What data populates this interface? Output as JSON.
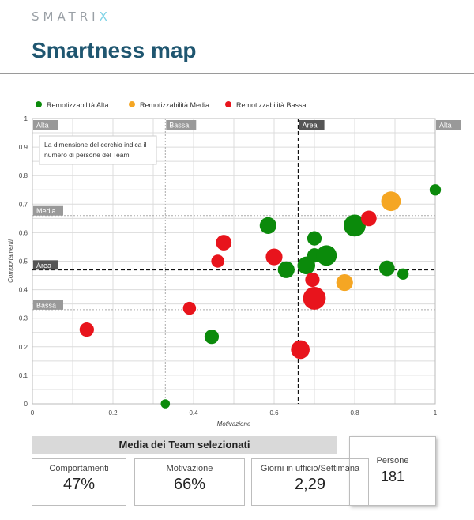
{
  "brand": {
    "text_main": "SMATRI",
    "text_accent": "X"
  },
  "page_title": "Smartness map",
  "chart_data": {
    "type": "scatter",
    "xlabel": "Motivazione",
    "ylabel": "Comportamenti",
    "xlim": [
      0,
      1
    ],
    "ylim": [
      0,
      1
    ],
    "x_ticks": [
      "0",
      "0.2",
      "0.4",
      "0.6",
      "0.8",
      "1"
    ],
    "y_ticks": [
      "0",
      "0.1",
      "0.2",
      "0.3",
      "0.4",
      "0.5",
      "0.6",
      "0.7",
      "0.8",
      "0.9",
      "1"
    ],
    "grid": true,
    "legend_position": "top-left",
    "note": "La dimensione del cerchio indica il numero di persone del Team",
    "area_lines": {
      "x": 0.66,
      "y": 0.47
    },
    "threshold_lines": {
      "x_bassa": 0.33,
      "y_media": 0.66,
      "y_bassa": 0.33
    },
    "region_labels": {
      "alta_left": "Alta",
      "bassa": "Bassa",
      "area_top": "Area",
      "alta_right": "Alta",
      "media": "Media",
      "area_left": "Area",
      "bassa_left": "Bassa"
    },
    "series": [
      {
        "name": "Remotizzabilità Alta",
        "color": "#0b8a0b",
        "points": [
          {
            "x": 0.33,
            "y": 0.0,
            "size": 1
          },
          {
            "x": 0.445,
            "y": 0.235,
            "size": 4
          },
          {
            "x": 0.585,
            "y": 0.625,
            "size": 6
          },
          {
            "x": 0.63,
            "y": 0.47,
            "size": 6
          },
          {
            "x": 0.68,
            "y": 0.485,
            "size": 7
          },
          {
            "x": 0.7,
            "y": 0.58,
            "size": 4
          },
          {
            "x": 0.7,
            "y": 0.52,
            "size": 4
          },
          {
            "x": 0.73,
            "y": 0.52,
            "size": 10
          },
          {
            "x": 0.8,
            "y": 0.625,
            "size": 12
          },
          {
            "x": 0.88,
            "y": 0.475,
            "size": 5
          },
          {
            "x": 0.92,
            "y": 0.455,
            "size": 2
          },
          {
            "x": 1.0,
            "y": 0.75,
            "size": 2
          }
        ]
      },
      {
        "name": "Remotizzabilità Media",
        "color": "#f5a623",
        "points": [
          {
            "x": 0.775,
            "y": 0.425,
            "size": 6
          },
          {
            "x": 0.89,
            "y": 0.71,
            "size": 9
          }
        ]
      },
      {
        "name": "Remotizzabilità Bassa",
        "color": "#e8141c",
        "points": [
          {
            "x": 0.135,
            "y": 0.26,
            "size": 4
          },
          {
            "x": 0.39,
            "y": 0.335,
            "size": 3
          },
          {
            "x": 0.46,
            "y": 0.5,
            "size": 3
          },
          {
            "x": 0.475,
            "y": 0.565,
            "size": 5
          },
          {
            "x": 0.6,
            "y": 0.515,
            "size": 6
          },
          {
            "x": 0.665,
            "y": 0.19,
            "size": 8
          },
          {
            "x": 0.695,
            "y": 0.435,
            "size": 4
          },
          {
            "x": 0.7,
            "y": 0.37,
            "size": 13
          },
          {
            "x": 0.835,
            "y": 0.65,
            "size": 5
          }
        ]
      }
    ]
  },
  "summary": {
    "title": "Media dei Team selezionati",
    "cards": [
      {
        "label": "Comportamenti",
        "value": "47%"
      },
      {
        "label": "Motivazione",
        "value": "66%"
      },
      {
        "label": "Giorni in ufficio/Settimana",
        "value": "2,29"
      }
    ],
    "persone": {
      "label": "Persone",
      "value": "181"
    }
  }
}
